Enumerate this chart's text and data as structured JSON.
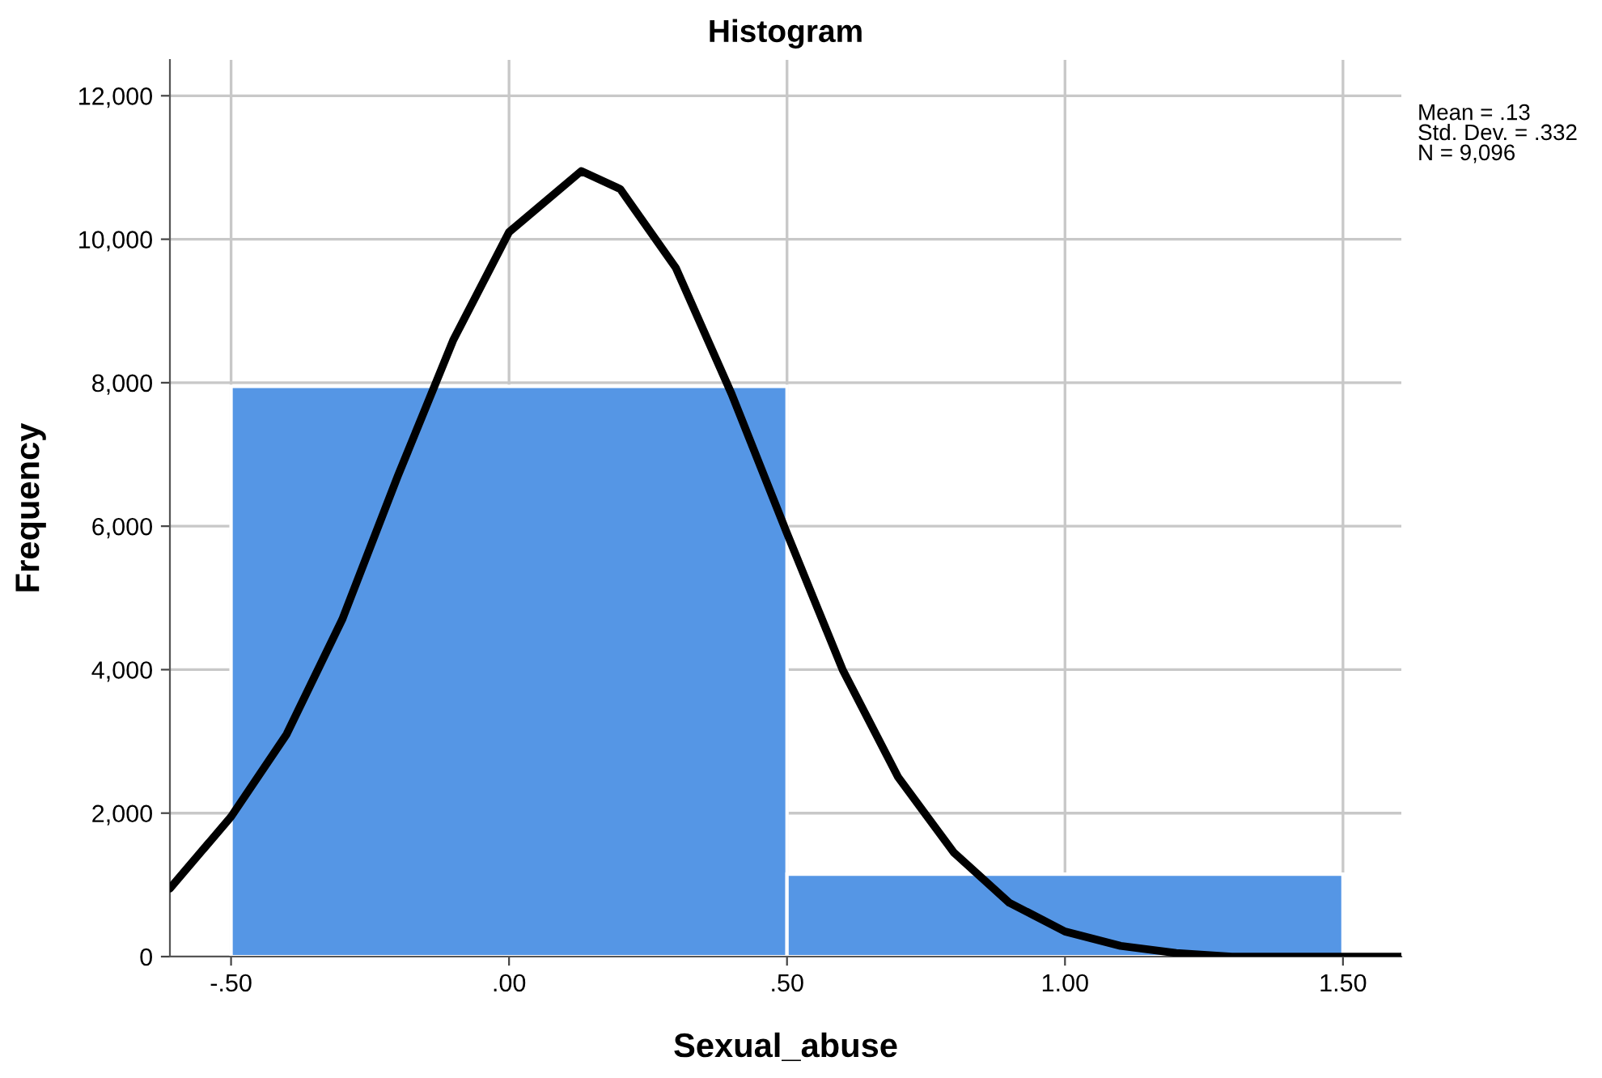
{
  "chart_data": {
    "type": "histogram",
    "title": "Histogram",
    "xlabel": "Sexual_abuse",
    "ylabel": "Frequency",
    "bins": [
      -0.5,
      0.5,
      1.5
    ],
    "values": [
      7950,
      1150
    ],
    "color": "#5596e5",
    "series": [
      {
        "type": "line",
        "color": "#000000",
        "x": [
          -0.61,
          -0.5,
          -0.4,
          -0.3,
          -0.2,
          -0.1,
          0.0,
          0.13,
          0.2,
          0.3,
          0.4,
          0.5,
          0.6,
          0.7,
          0.8,
          0.9,
          1.0,
          1.1,
          1.2,
          1.3,
          1.4,
          1.5,
          1.605
        ],
        "values": [
          950,
          1950,
          3100,
          4700,
          6700,
          8600,
          10100,
          10950,
          10700,
          9600,
          7850,
          5900,
          4000,
          2500,
          1450,
          750,
          350,
          150,
          50,
          0,
          0,
          0,
          0
        ]
      }
    ],
    "xlim": [
      -0.61,
      1.605
    ],
    "ylim": [
      0,
      12500
    ],
    "xticks": [
      {
        "value": -0.5,
        "label": "-.50"
      },
      {
        "value": 0,
        "label": ".00"
      },
      {
        "value": 0.5,
        "label": ".50"
      },
      {
        "value": 1.0,
        "label": "1.00"
      },
      {
        "value": 1.5,
        "label": "1.50"
      }
    ],
    "yticks": [
      {
        "value": 0,
        "label": "0"
      },
      {
        "value": 2000,
        "label": "2,000"
      },
      {
        "value": 4000,
        "label": "4,000"
      },
      {
        "value": 6000,
        "label": "6,000"
      },
      {
        "value": 8000,
        "label": "8,000"
      },
      {
        "value": 10000,
        "label": "10,000"
      },
      {
        "value": 12000,
        "label": "12,000"
      }
    ],
    "grid": true,
    "annotations": [
      "Mean = .13\nStd. Dev. = .332\nN = 9,096"
    ]
  }
}
